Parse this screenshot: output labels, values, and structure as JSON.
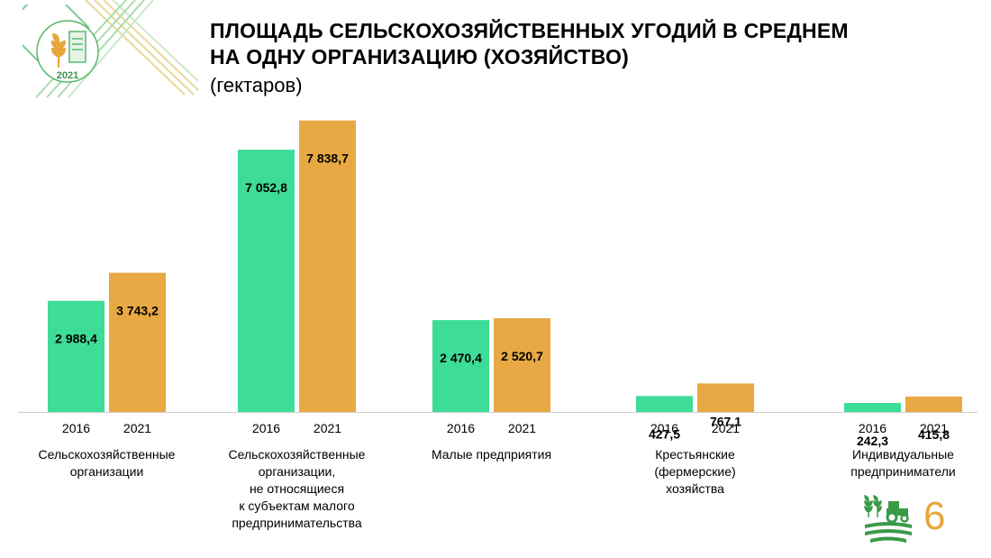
{
  "header": {
    "title_line1": "ПЛОЩАДЬ СЕЛЬСКОХОЗЯЙСТВЕННЫХ УГОДИЙ В СРЕДНЕМ",
    "title_line2": "НА ОДНУ ОРГАНИЗАЦИЮ (ХОЗЯЙСТВО)",
    "subtitle": "(гектаров)"
  },
  "logo": {
    "year": "2021",
    "icon": "census-logo-icon"
  },
  "colors": {
    "s2016": "#3ddc97",
    "s2021": "#e8a944",
    "axis": "#cccccc"
  },
  "chart_data": {
    "type": "bar",
    "categories": [
      [
        "Сельскохозяйственные",
        "организации"
      ],
      [
        "Сельскохозяйственные",
        "организации,",
        "не относящиеся",
        "к субъектам малого",
        "предпринимательства"
      ],
      [
        "Малые предприятия"
      ],
      [
        "Крестьянские",
        "(фермерские)",
        "хозяйства"
      ],
      [
        "Индивидуальные",
        "предприниматели"
      ]
    ],
    "years": [
      "2016",
      "2021"
    ],
    "series": [
      {
        "year": "2016",
        "values": [
          2988.4,
          7052.8,
          2470.4,
          427.5,
          242.3
        ],
        "labels": [
          "2 988,4",
          "7 052,8",
          "2 470,4",
          "427,5",
          "242,3"
        ]
      },
      {
        "year": "2021",
        "values": [
          3743.2,
          7838.7,
          2520.7,
          767.1,
          415.8
        ],
        "labels": [
          "3 743,2",
          "7 838,7",
          "2 520,7",
          "767,1",
          "415,8"
        ]
      }
    ],
    "ylim": [
      0,
      8000
    ],
    "grid": false,
    "legend": "none"
  },
  "footer": {
    "page_number": "6",
    "icon": "agriculture-tractor-icon"
  }
}
